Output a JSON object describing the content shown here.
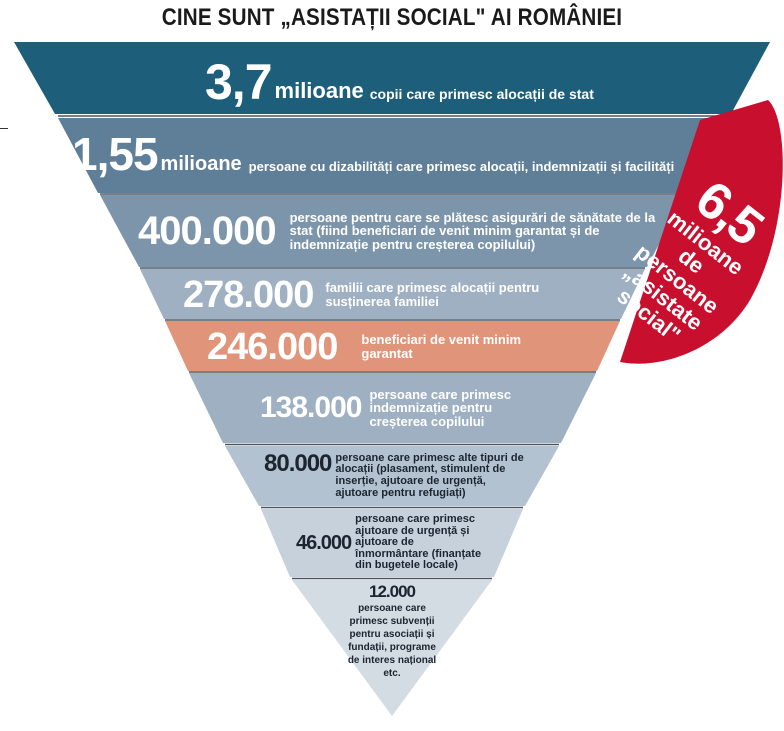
{
  "title": "CINE SUNT „ASISTAȚII SOCIAL\" AI ROMÂNIEI",
  "colors": {
    "level_dark_teal": "#1d5e7a",
    "level_steel_blue": "#5f7f99",
    "level_light_steel": "#7d95ab",
    "level_pale_steel": "#9eb0c1",
    "level_salmon": "#e0957a",
    "level_grey_blue": "#b3c2d0",
    "level_pale_grey": "#d3dbe3",
    "badge_red": "#c8102e"
  },
  "levels": [
    {
      "number": "3,7",
      "unit": "milioane",
      "description": "copii care primesc alocații de stat"
    },
    {
      "number": "1,55",
      "unit": "milioane",
      "description": "persoane cu dizabilități care primesc alocații, indemnizații și facilități"
    },
    {
      "number": "400.000",
      "description": "persoane pentru care se plătesc asigurări de sănătate de la stat (fiind beneficiari de venit minim garantat și de indemnizație pentru creșterea copilului)"
    },
    {
      "number": "278.000",
      "description": "familii care primesc alocații pentru susținerea familiei"
    },
    {
      "number": "246.000",
      "description": "beneficiari de venit minim garantat"
    },
    {
      "number": "138.000",
      "description": "persoane care primesc indemnizație pentru creșterea copilului"
    },
    {
      "number": "80.000",
      "description": "persoane care primesc alte tipuri de alocații (plasament, stimulent de inserție, ajutoare de urgență, ajutoare pentru refugiați)"
    },
    {
      "number": "46.000",
      "description": "persoane care primesc ajutoare de urgență și ajutoare de înmormântare (finanțate din bugetele locale)"
    },
    {
      "number": "12.000",
      "description": "persoane care primesc subvenții pentru asociații și fundații, programe de interes național etc."
    }
  ],
  "badge": {
    "number": "6,5",
    "line1": "milioane",
    "line2": "de",
    "line3": "persoane",
    "line4": "„asistate",
    "line5": "social\""
  }
}
